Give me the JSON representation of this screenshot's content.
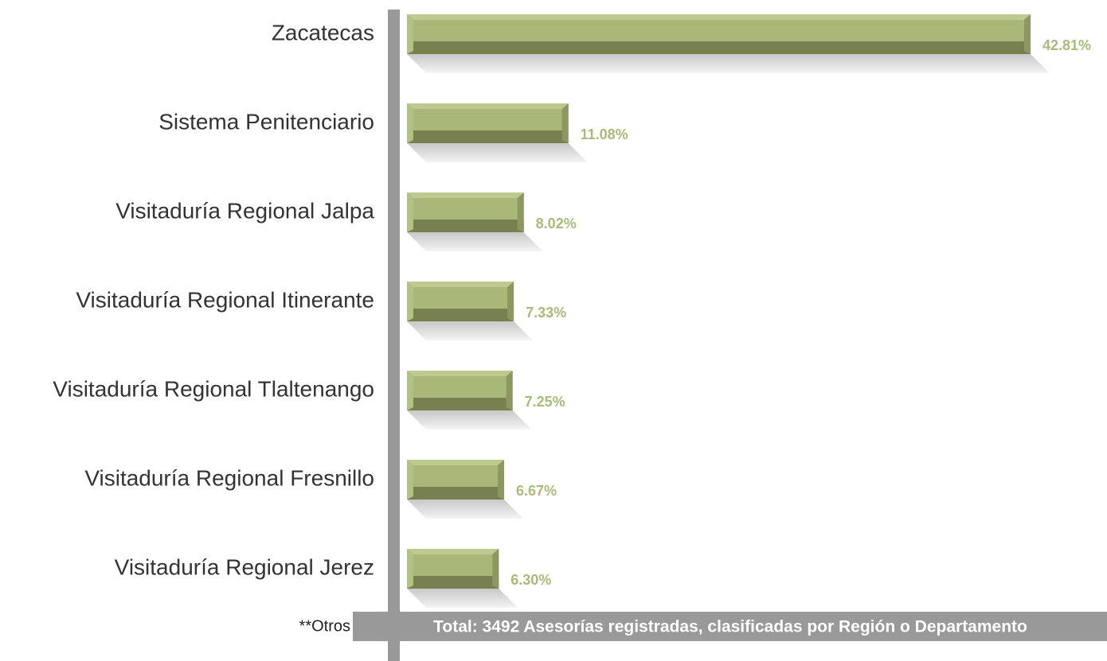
{
  "chart_data": {
    "type": "bar",
    "orientation": "horizontal",
    "categories": [
      "Zacatecas",
      "Sistema Penitenciario",
      "Visitaduría Regional Jalpa",
      "Visitaduría Regional Itinerante",
      "Visitaduría Regional Tlaltenango",
      "Visitaduría Regional Fresnillo",
      "Visitaduría Regional Jerez"
    ],
    "values": [
      42.81,
      11.08,
      8.02,
      7.33,
      7.25,
      6.67,
      6.3
    ],
    "value_labels": [
      "42.81%",
      "11.08%",
      "8.02%",
      "7.33%",
      "7.25%",
      "6.67%",
      "6.30%"
    ],
    "color": "#9aab68",
    "note": "**Otros",
    "footer": "Total: 3492 Asesorías registradas, clasificadas por Región o Departamento"
  }
}
